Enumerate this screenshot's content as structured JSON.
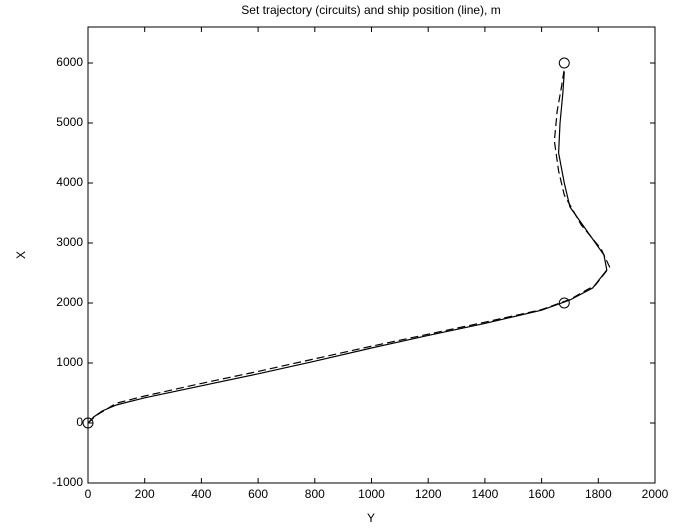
{
  "chart_data": {
    "type": "line",
    "title": "Set trajectory (circuits) and ship position (line), m",
    "xlabel": "Y",
    "ylabel": "X",
    "xlim": [
      0,
      2000
    ],
    "ylim": [
      -1000,
      6600
    ],
    "xticks": [
      0,
      200,
      400,
      600,
      800,
      1000,
      1200,
      1400,
      1600,
      1800,
      2000
    ],
    "yticks": [
      -1000,
      0,
      1000,
      2000,
      3000,
      4000,
      5000,
      6000
    ],
    "grid": false,
    "series": [
      {
        "color": "#000000",
        "linestyle": "solid",
        "marker": "none",
        "x": [
          0,
          20,
          50,
          100,
          200,
          400,
          600,
          800,
          1000,
          1200,
          1400,
          1600,
          1700,
          1780,
          1830,
          1820,
          1760,
          1700,
          1680,
          1660,
          1665,
          1675,
          1680
        ],
        "values": [
          0,
          100,
          200,
          300,
          420,
          620,
          820,
          1030,
          1250,
          1460,
          1660,
          1880,
          2050,
          2250,
          2550,
          2800,
          3200,
          3600,
          4000,
          4500,
          5000,
          5500,
          5850
        ]
      },
      {
        "color": "#000000",
        "linestyle": "dashed",
        "marker": "none",
        "x": [
          0,
          30,
          100,
          200,
          400,
          600,
          800,
          1000,
          1200,
          1400,
          1600,
          1700,
          1790,
          1840,
          1810,
          1740,
          1680,
          1660,
          1645,
          1655,
          1670,
          1680
        ],
        "values": [
          0,
          130,
          330,
          450,
          660,
          860,
          1070,
          1280,
          1480,
          1680,
          1890,
          2060,
          2300,
          2600,
          2900,
          3300,
          3800,
          4200,
          4700,
          5200,
          5600,
          5900
        ]
      },
      {
        "color": "#000000",
        "linestyle": "none",
        "marker": "circle",
        "x": [
          0,
          1680,
          1680
        ],
        "values": [
          0,
          2000,
          6000
        ]
      }
    ]
  }
}
